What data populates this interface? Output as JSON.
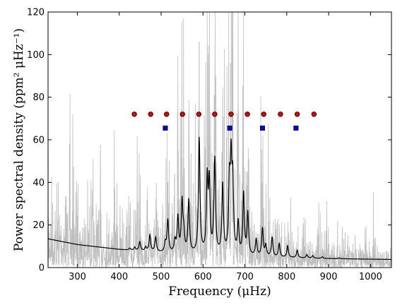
{
  "chart_data": {
    "type": "line",
    "xlabel": "Frequency (μHz)",
    "ylabel": "Power spectral density (ppm² μHz⁻¹)",
    "xlim": [
      230,
      1050
    ],
    "ylim": [
      0,
      120
    ],
    "x_ticks": [
      300,
      400,
      500,
      600,
      700,
      800,
      900,
      1000
    ],
    "y_ticks": [
      0,
      20,
      40,
      60,
      80,
      100,
      120
    ],
    "grid": false,
    "legend": "none",
    "background_level": {
      "description_values": [
        [
          230,
          13.5
        ],
        [
          300,
          10.8
        ],
        [
          400,
          8.5
        ],
        [
          500,
          7.0
        ],
        [
          600,
          6.0
        ],
        [
          700,
          5.2
        ],
        [
          800,
          4.6
        ],
        [
          900,
          4.2
        ],
        [
          1050,
          3.8
        ]
      ]
    },
    "smoothed_peaks": [
      {
        "x": 425,
        "y": 3
      },
      {
        "x": 437,
        "y": 5
      },
      {
        "x": 449,
        "y": 12
      },
      {
        "x": 463,
        "y": 6
      },
      {
        "x": 473,
        "y": 15
      },
      {
        "x": 487,
        "y": 14
      },
      {
        "x": 510,
        "y": 11
      },
      {
        "x": 516,
        "y": 22
      },
      {
        "x": 533,
        "y": 12
      },
      {
        "x": 540,
        "y": 23
      },
      {
        "x": 550,
        "y": 30
      },
      {
        "x": 554,
        "y": 15
      },
      {
        "x": 566,
        "y": 31
      },
      {
        "x": 591,
        "y": 60
      },
      {
        "x": 610,
        "y": 40
      },
      {
        "x": 615,
        "y": 38
      },
      {
        "x": 628,
        "y": 50
      },
      {
        "x": 647,
        "y": 38
      },
      {
        "x": 663,
        "y": 36
      },
      {
        "x": 667,
        "y": 45
      },
      {
        "x": 671,
        "y": 37
      },
      {
        "x": 684,
        "y": 20
      },
      {
        "x": 697,
        "y": 34
      },
      {
        "x": 707,
        "y": 25
      },
      {
        "x": 727,
        "y": 13
      },
      {
        "x": 742,
        "y": 18
      },
      {
        "x": 750,
        "y": 10
      },
      {
        "x": 765,
        "y": 14
      },
      {
        "x": 782,
        "y": 11
      },
      {
        "x": 802,
        "y": 10
      },
      {
        "x": 825,
        "y": 8
      },
      {
        "x": 848,
        "y": 6
      },
      {
        "x": 862,
        "y": 5.5
      },
      {
        "x": 885,
        "y": 5
      },
      {
        "x": 926,
        "y": 4.5
      }
    ],
    "raw_spikes": [
      {
        "x": 449,
        "y": 23
      },
      {
        "x": 487,
        "y": 19
      },
      {
        "x": 516,
        "y": 40
      },
      {
        "x": 532,
        "y": 44
      },
      {
        "x": 540,
        "y": 32
      },
      {
        "x": 550,
        "y": 52
      },
      {
        "x": 566,
        "y": 72
      },
      {
        "x": 591,
        "y": 106
      },
      {
        "x": 613,
        "y": 85
      },
      {
        "x": 627,
        "y": 81
      },
      {
        "x": 648,
        "y": 71
      },
      {
        "x": 666,
        "y": 96
      },
      {
        "x": 671,
        "y": 103
      },
      {
        "x": 695,
        "y": 49
      },
      {
        "x": 706,
        "y": 45
      },
      {
        "x": 742,
        "y": 40
      }
    ],
    "series": [
      {
        "marker": "circle",
        "color": "#dd0000",
        "x": [
          436,
          475,
          513,
          551,
          590,
          628,
          667,
          706,
          745,
          785,
          825,
          865
        ],
        "y": [
          72,
          72,
          72,
          72,
          72,
          72,
          72,
          72,
          72,
          72,
          72,
          72
        ]
      },
      {
        "marker": "square",
        "color": "#0000cc",
        "x": [
          510,
          664,
          742,
          822
        ],
        "y": [
          65.5,
          65.5,
          65.5,
          65.5
        ]
      }
    ],
    "colors": {
      "raw": "#bebebe",
      "smooth": "#000000"
    }
  }
}
